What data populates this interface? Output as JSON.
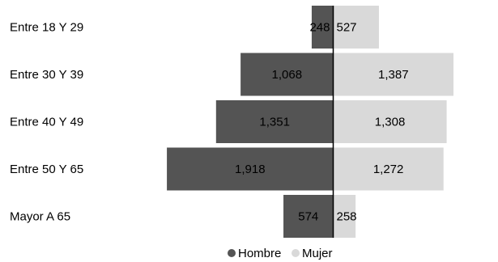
{
  "chart_data": {
    "type": "bar",
    "orientation": "horizontal-diverging",
    "categories": [
      "Entre 18 Y 29",
      "Entre 30 Y 39",
      "Entre 40 Y 49",
      "Entre 50 Y 65",
      "Mayor A 65"
    ],
    "series": [
      {
        "name": "Hombre",
        "values": [
          248,
          1068,
          1351,
          1918,
          574
        ],
        "labels": [
          "248",
          "1,068",
          "1,351",
          "1,918",
          "574"
        ],
        "color": "#545454"
      },
      {
        "name": "Mujer",
        "values": [
          527,
          1387,
          1308,
          1272,
          258
        ],
        "labels": [
          "527",
          "1,387",
          "1,308",
          "1,272",
          "258"
        ],
        "color": "#d9d9d9"
      }
    ],
    "legend_position": "bottom",
    "grid": false
  }
}
